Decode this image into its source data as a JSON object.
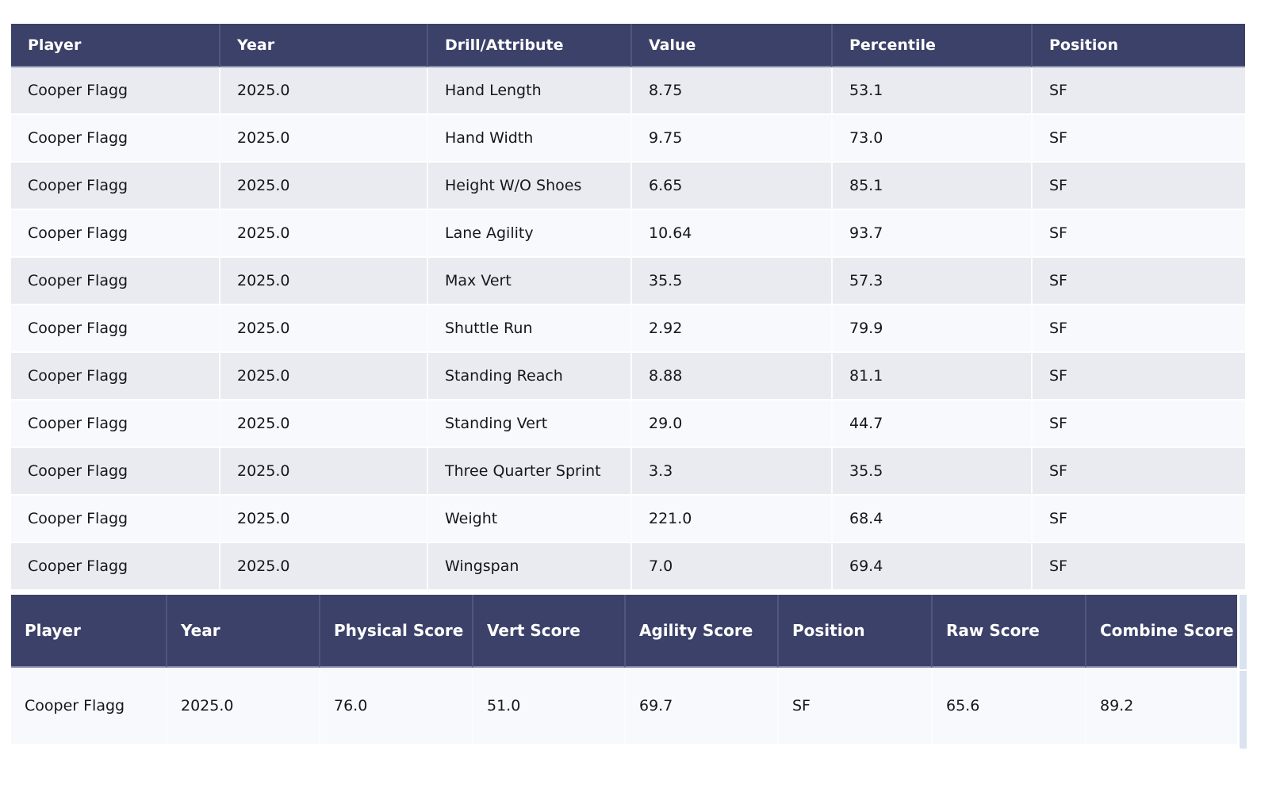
{
  "colors": {
    "header_navy": "#3b4168",
    "header_divider": "#50567c",
    "row_odd": "#e9ebf0",
    "row_even": "#f8f9fd",
    "right_strip": "#dbe3f1",
    "text": "#15171c"
  },
  "tables": {
    "drills": {
      "columns": [
        "Player",
        "Year",
        "Drill/Attribute",
        "Value",
        "Percentile",
        "Position"
      ],
      "rows": [
        [
          "Cooper Flagg",
          "2025.0",
          "Hand Length",
          "8.75",
          "53.1",
          "SF"
        ],
        [
          "Cooper Flagg",
          "2025.0",
          "Hand Width",
          "9.75",
          "73.0",
          "SF"
        ],
        [
          "Cooper Flagg",
          "2025.0",
          "Height W/O Shoes",
          "6.65",
          "85.1",
          "SF"
        ],
        [
          "Cooper Flagg",
          "2025.0",
          "Lane Agility",
          "10.64",
          "93.7",
          "SF"
        ],
        [
          "Cooper Flagg",
          "2025.0",
          "Max Vert",
          "35.5",
          "57.3",
          "SF"
        ],
        [
          "Cooper Flagg",
          "2025.0",
          "Shuttle Run",
          "2.92",
          "79.9",
          "SF"
        ],
        [
          "Cooper Flagg",
          "2025.0",
          "Standing Reach",
          "8.88",
          "81.1",
          "SF"
        ],
        [
          "Cooper Flagg",
          "2025.0",
          "Standing Vert",
          "29.0",
          "44.7",
          "SF"
        ],
        [
          "Cooper Flagg",
          "2025.0",
          "Three Quarter Sprint",
          "3.3",
          "35.5",
          "SF"
        ],
        [
          "Cooper Flagg",
          "2025.0",
          "Weight",
          "221.0",
          "68.4",
          "SF"
        ],
        [
          "Cooper Flagg",
          "2025.0",
          "Wingspan",
          "7.0",
          "69.4",
          "SF"
        ]
      ]
    },
    "scores": {
      "columns": [
        "Player",
        "Year",
        "Physical Score",
        "Vert Score",
        "Agility Score",
        "Position",
        "Raw Score",
        "Combine Score"
      ],
      "rows": [
        [
          "Cooper Flagg",
          "2025.0",
          "76.0",
          "51.0",
          "69.7",
          "SF",
          "65.6",
          "89.2"
        ]
      ]
    }
  }
}
